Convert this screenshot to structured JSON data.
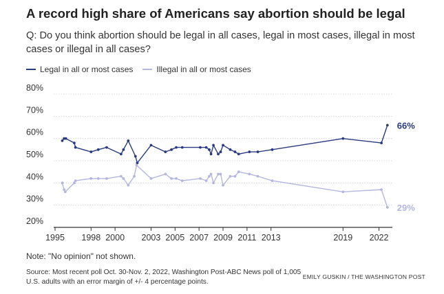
{
  "header": {
    "title": "A record high share of Americans say abortion should be legal",
    "question": "Q: Do you think abortion should be legal in all cases, legal in most cases, illegal in most cases or illegal in all cases?"
  },
  "colors": {
    "legal": "#283a80",
    "illegal": "#b4b5e0",
    "grid": "#cccccc",
    "axis": "#333333"
  },
  "chart_data": {
    "type": "line",
    "title": "A record high share of Americans say abortion should be legal",
    "xlabel": "",
    "ylabel": "",
    "xlim": [
      1995,
      2023
    ],
    "ylim": [
      20,
      80
    ],
    "x_ticks": [
      1995,
      1998,
      2000,
      2003,
      2005,
      2007,
      2009,
      2011,
      2013,
      2019,
      2022
    ],
    "x_tick_labels": [
      "1995",
      "1998",
      "2000",
      "2003",
      "2005",
      "2007",
      "2009",
      "2011",
      "2013",
      "2019",
      "2022"
    ],
    "y_ticks": [
      20,
      30,
      40,
      50,
      60,
      70,
      80
    ],
    "y_tick_labels": [
      "20%",
      "30%",
      "40%",
      "50%",
      "60%",
      "70%",
      "80%"
    ],
    "grid": true,
    "legend_position": "top-left",
    "series": [
      {
        "name": "Legal in all or most cases",
        "color": "#283a80",
        "end_label": "66%",
        "points": [
          [
            1995.6,
            59
          ],
          [
            1995.75,
            60
          ],
          [
            1995.9,
            60
          ],
          [
            1996.6,
            58
          ],
          [
            1996.7,
            56
          ],
          [
            1998.0,
            54
          ],
          [
            1998.6,
            55
          ],
          [
            1999.3,
            56
          ],
          [
            2000.5,
            53
          ],
          [
            2000.7,
            55
          ],
          [
            2001.1,
            59
          ],
          [
            2001.7,
            52
          ],
          [
            2001.85,
            49
          ],
          [
            2003.0,
            57
          ],
          [
            2004.2,
            54
          ],
          [
            2004.7,
            55
          ],
          [
            2005.1,
            56
          ],
          [
            2005.6,
            56
          ],
          [
            2007.1,
            56
          ],
          [
            2007.6,
            56
          ],
          [
            2007.85,
            55
          ],
          [
            2008.0,
            53
          ],
          [
            2008.2,
            57
          ],
          [
            2008.6,
            53
          ],
          [
            2008.8,
            54
          ],
          [
            2009.0,
            57
          ],
          [
            2009.6,
            55
          ],
          [
            2010.0,
            54
          ],
          [
            2010.3,
            53
          ],
          [
            2011.2,
            54
          ],
          [
            2011.9,
            54
          ],
          [
            2013.1,
            55
          ],
          [
            2019.0,
            60
          ],
          [
            2022.2,
            58
          ],
          [
            2022.7,
            66
          ]
        ]
      },
      {
        "name": "Illegal in all or most cases",
        "color": "#b4b5e0",
        "end_label": "29%",
        "points": [
          [
            1995.6,
            40
          ],
          [
            1995.75,
            37
          ],
          [
            1995.85,
            36
          ],
          [
            1996.6,
            40
          ],
          [
            1996.7,
            41
          ],
          [
            1998.0,
            42
          ],
          [
            1998.6,
            42
          ],
          [
            1999.3,
            42
          ],
          [
            2000.5,
            43
          ],
          [
            2000.7,
            42
          ],
          [
            2001.1,
            39
          ],
          [
            2001.6,
            43
          ],
          [
            2001.8,
            48
          ],
          [
            2003.0,
            42
          ],
          [
            2004.2,
            44
          ],
          [
            2004.7,
            42
          ],
          [
            2005.1,
            42
          ],
          [
            2005.6,
            41
          ],
          [
            2007.1,
            42
          ],
          [
            2007.6,
            41
          ],
          [
            2007.85,
            43
          ],
          [
            2008.0,
            44
          ],
          [
            2008.2,
            40
          ],
          [
            2008.6,
            44
          ],
          [
            2008.8,
            44
          ],
          [
            2009.0,
            39
          ],
          [
            2009.6,
            43
          ],
          [
            2010.0,
            43
          ],
          [
            2010.3,
            45
          ],
          [
            2011.2,
            44
          ],
          [
            2011.9,
            43
          ],
          [
            2013.1,
            41
          ],
          [
            2019.0,
            36
          ],
          [
            2022.2,
            37
          ],
          [
            2022.7,
            29
          ]
        ]
      }
    ]
  },
  "footer": {
    "note": "Note: \"No opinion\" not shown.",
    "source": "Source: Most recent poll Oct. 30-Nov. 2, 2022, Washington Post-ABC News poll of 1,005 U.S. adults with an error margin of +/- 4 percentage points.",
    "credit": "EMILY GUSKIN / THE WASHINGTON POST"
  }
}
